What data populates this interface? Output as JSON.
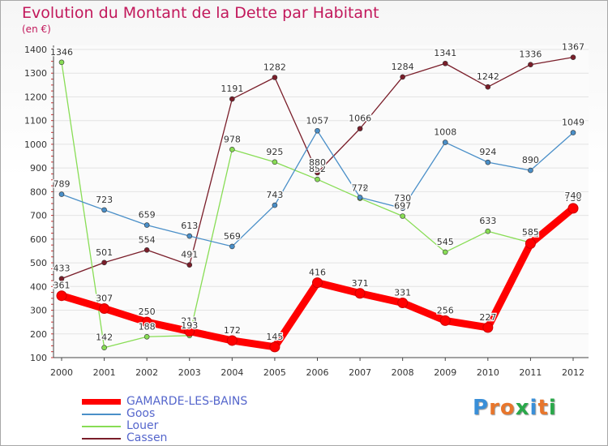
{
  "chart_data": {
    "type": "line",
    "title": "Evolution du Montant de la Dette par Habitant",
    "subtitle": "(en €)",
    "xlabel": "",
    "ylabel": "",
    "x": [
      "2000",
      "2001",
      "2002",
      "2003",
      "2004",
      "2005",
      "2006",
      "2007",
      "2008",
      "2009",
      "2010",
      "2011",
      "2012"
    ],
    "ylim": [
      100,
      1400
    ],
    "yticks": [
      100,
      200,
      300,
      400,
      500,
      600,
      700,
      800,
      900,
      1000,
      1100,
      1200,
      1300,
      1400
    ],
    "legend_position": "bottom-left",
    "series": [
      {
        "name": "GAMARDE-LES-BAINS",
        "color": "#ff0000",
        "values": [
          361,
          307,
          250,
          211,
          172,
          145,
          416,
          371,
          331,
          256,
          227,
          581,
          730
        ]
      },
      {
        "name": "Goos",
        "color": "#4a8fc8",
        "values": [
          789,
          723,
          659,
          613,
          569,
          743,
          1057,
          776,
          730,
          1008,
          924,
          890,
          1049
        ]
      },
      {
        "name": "Louer",
        "color": "#88dd55",
        "values": [
          1346,
          142,
          188,
          193,
          978,
          925,
          852,
          772,
          697,
          545,
          633,
          585,
          740
        ]
      },
      {
        "name": "Cassen",
        "color": "#7a1e2a",
        "values": [
          433,
          501,
          554,
          491,
          1191,
          1282,
          880,
          1066,
          1284,
          1341,
          1242,
          1336,
          1367
        ]
      }
    ]
  },
  "brand": {
    "text": "Proxiti",
    "letters": [
      "P",
      "r",
      "o",
      "x",
      "i",
      "t",
      "i"
    ],
    "colors": [
      "#3a8fd8",
      "#e8762c",
      "#e8762c",
      "#2aa84a",
      "#3a8fd8",
      "#e8762c",
      "#2aa84a"
    ]
  }
}
